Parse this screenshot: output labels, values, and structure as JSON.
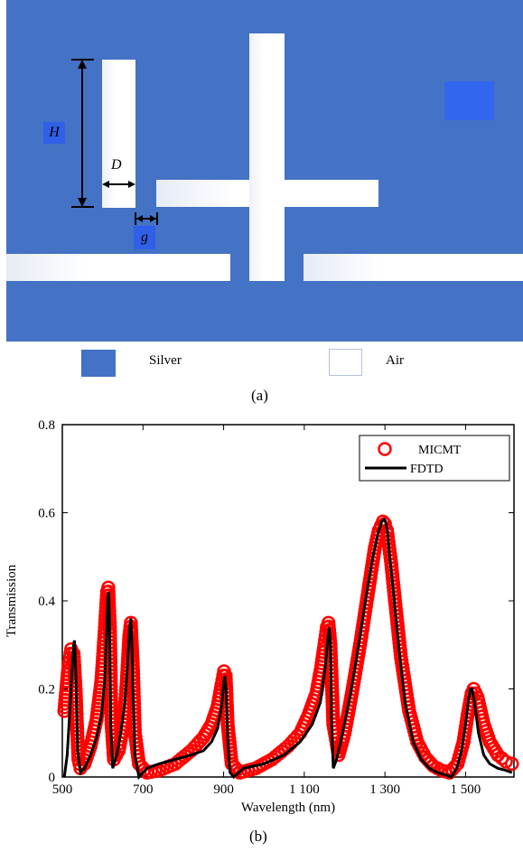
{
  "panel_a": {
    "labels": {
      "H": "H",
      "D": "D",
      "g": "g"
    },
    "legend": {
      "silver": "Silver",
      "air": "Air"
    },
    "colors": {
      "silver": "#4472c4",
      "air": "#ffffff",
      "marker": "#3366ee"
    },
    "caption": "(a)"
  },
  "panel_b": {
    "caption": "(b)"
  },
  "chart_data": {
    "type": "line",
    "title": "",
    "xlabel": "Wavelength (nm)",
    "ylabel": "Transmission",
    "xlim": [
      500,
      1620
    ],
    "ylim": [
      0,
      0.8
    ],
    "xticks": [
      500,
      700,
      900,
      1100,
      1300,
      1500
    ],
    "xtick_labels": [
      "500",
      "700",
      "900",
      "1 100",
      "1 300",
      "1 500"
    ],
    "yticks": [
      0,
      0.2,
      0.4,
      0.6,
      0.8
    ],
    "ytick_labels": [
      "0",
      "0.2",
      "0.4",
      "0.6",
      "0.8"
    ],
    "legend_position": "top-right",
    "series": [
      {
        "name": "MICMT",
        "style": "markers",
        "color": "#ff0000",
        "x": [
          505,
          515,
          522,
          528,
          533,
          537,
          540,
          545,
          555,
          570,
          585,
          597,
          605,
          611,
          614,
          618,
          622,
          628,
          640,
          652,
          660,
          666,
          670,
          675,
          680,
          690,
          710,
          740,
          780,
          820,
          850,
          870,
          885,
          895,
          901,
          905,
          910,
          920,
          940,
          980,
          1020,
          1060,
          1090,
          1110,
          1130,
          1142,
          1150,
          1156,
          1160,
          1165,
          1172,
          1185,
          1200,
          1220,
          1240,
          1260,
          1275,
          1285,
          1295,
          1300,
          1305,
          1315,
          1325,
          1340,
          1360,
          1380,
          1400,
          1420,
          1440,
          1460,
          1480,
          1495,
          1505,
          1515,
          1520,
          1530,
          1545,
          1560,
          1580,
          1600,
          1615
        ],
        "y": [
          0.15,
          0.25,
          0.29,
          0.28,
          0.2,
          0.1,
          0.04,
          0.02,
          0.03,
          0.07,
          0.13,
          0.22,
          0.33,
          0.42,
          0.43,
          0.34,
          0.12,
          0.04,
          0.06,
          0.12,
          0.22,
          0.32,
          0.35,
          0.25,
          0.1,
          0.03,
          0.01,
          0.015,
          0.03,
          0.06,
          0.09,
          0.12,
          0.16,
          0.21,
          0.24,
          0.23,
          0.12,
          0.03,
          0.01,
          0.02,
          0.04,
          0.07,
          0.1,
          0.14,
          0.19,
          0.25,
          0.3,
          0.34,
          0.35,
          0.3,
          0.12,
          0.05,
          0.1,
          0.2,
          0.31,
          0.43,
          0.52,
          0.56,
          0.58,
          0.575,
          0.56,
          0.49,
          0.4,
          0.27,
          0.15,
          0.08,
          0.045,
          0.025,
          0.015,
          0.01,
          0.03,
          0.08,
          0.14,
          0.19,
          0.2,
          0.18,
          0.12,
          0.08,
          0.05,
          0.035,
          0.03
        ]
      },
      {
        "name": "FDTD",
        "style": "line",
        "color": "#000000",
        "x": [
          505,
          512,
          518,
          524,
          528,
          530,
          532,
          535,
          538,
          545,
          555,
          570,
          585,
          597,
          605,
          610,
          613,
          615,
          617,
          620,
          625,
          635,
          645,
          655,
          662,
          667,
          670,
          672,
          675,
          680,
          690,
          710,
          740,
          780,
          820,
          850,
          870,
          885,
          895,
          900,
          903,
          906,
          910,
          916,
          925,
          950,
          1000,
          1050,
          1090,
          1120,
          1140,
          1152,
          1158,
          1162,
          1165,
          1168,
          1172,
          1180,
          1195,
          1215,
          1235,
          1255,
          1270,
          1282,
          1292,
          1298,
          1302,
          1306,
          1312,
          1322,
          1335,
          1350,
          1370,
          1390,
          1410,
          1430,
          1450,
          1465,
          1478,
          1490,
          1500,
          1508,
          1512,
          1516,
          1522,
          1532,
          1545,
          1560,
          1580,
          1600,
          1615
        ],
        "y": [
          0.0,
          0.05,
          0.14,
          0.24,
          0.3,
          0.31,
          0.28,
          0.18,
          0.06,
          0.01,
          0.02,
          0.05,
          0.09,
          0.14,
          0.22,
          0.33,
          0.41,
          0.42,
          0.36,
          0.12,
          0.02,
          0.05,
          0.1,
          0.17,
          0.26,
          0.34,
          0.36,
          0.32,
          0.2,
          0.05,
          0.0,
          0.02,
          0.03,
          0.04,
          0.05,
          0.06,
          0.08,
          0.11,
          0.16,
          0.21,
          0.23,
          0.2,
          0.09,
          0.01,
          0.0,
          0.02,
          0.03,
          0.05,
          0.08,
          0.12,
          0.17,
          0.25,
          0.31,
          0.34,
          0.3,
          0.12,
          0.02,
          0.04,
          0.1,
          0.19,
          0.3,
          0.42,
          0.5,
          0.55,
          0.58,
          0.585,
          0.58,
          0.56,
          0.5,
          0.41,
          0.29,
          0.17,
          0.08,
          0.04,
          0.02,
          0.01,
          0.005,
          0.0,
          0.02,
          0.06,
          0.12,
          0.18,
          0.2,
          0.2,
          0.17,
          0.1,
          0.05,
          0.03,
          0.02,
          0.015,
          0.01
        ]
      }
    ]
  }
}
